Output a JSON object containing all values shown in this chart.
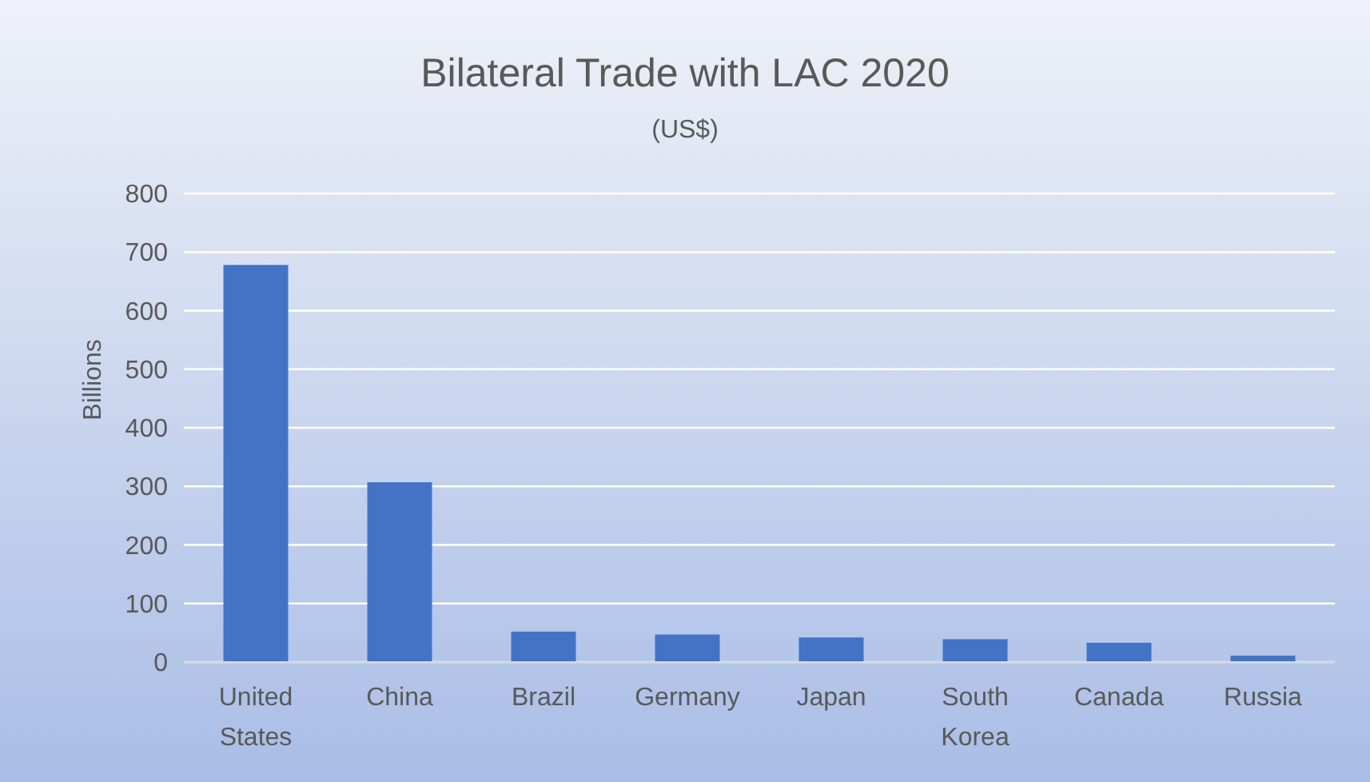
{
  "chart_data": {
    "type": "bar",
    "title": "Bilateral Trade with LAC 2020",
    "subtitle": "(US$)",
    "ylabel": "Billions",
    "categories": [
      "United States",
      "China",
      "Brazil",
      "Germany",
      "Japan",
      "South Korea",
      "Canada",
      "Russia"
    ],
    "values": [
      678,
      307,
      52,
      47,
      42,
      39,
      33,
      11
    ],
    "color": "#4472c4",
    "ylim": [
      0,
      800
    ],
    "yticks": [
      0,
      100,
      200,
      300,
      400,
      500,
      600,
      700,
      800
    ],
    "grid": "y"
  }
}
